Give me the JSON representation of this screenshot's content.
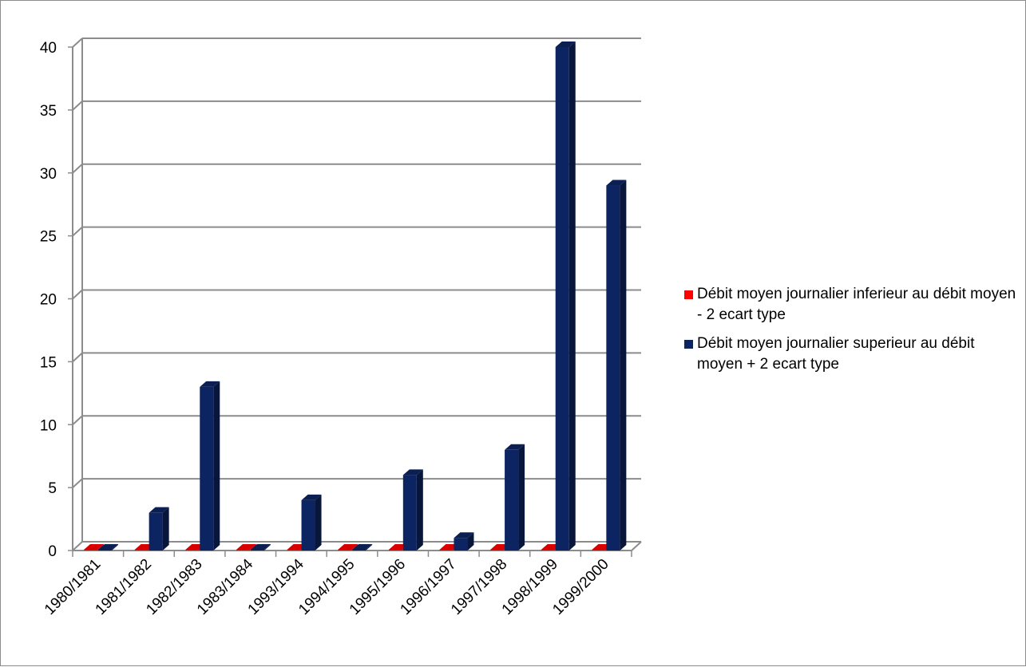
{
  "chart_data": {
    "type": "bar",
    "categories": [
      "1980/1981",
      "1981/1982",
      "1982/1983",
      "1983/1984",
      "1993/1994",
      "1994/1995",
      "1995/1996",
      "1996/1997",
      "1997/1998",
      "1998/1999",
      "1999/2000"
    ],
    "series": [
      {
        "name": "Débit moyen journalier inferieur au débit moyen - 2 ecart type",
        "color": "#ff0000",
        "values": [
          0,
          0,
          0,
          0,
          0,
          0,
          0,
          0,
          0,
          0,
          0
        ]
      },
      {
        "name": "Débit moyen journalier superieur au débit moyen + 2 ecart type",
        "color": "#0d2462",
        "values": [
          0,
          3,
          13,
          0,
          4,
          0,
          6,
          1,
          8,
          40,
          29
        ]
      }
    ],
    "ylim": [
      0,
      40
    ],
    "yticks": [
      0,
      5,
      10,
      15,
      20,
      25,
      30,
      35,
      40
    ],
    "grid": true,
    "legend_position": "right",
    "style": "3d-bar"
  }
}
